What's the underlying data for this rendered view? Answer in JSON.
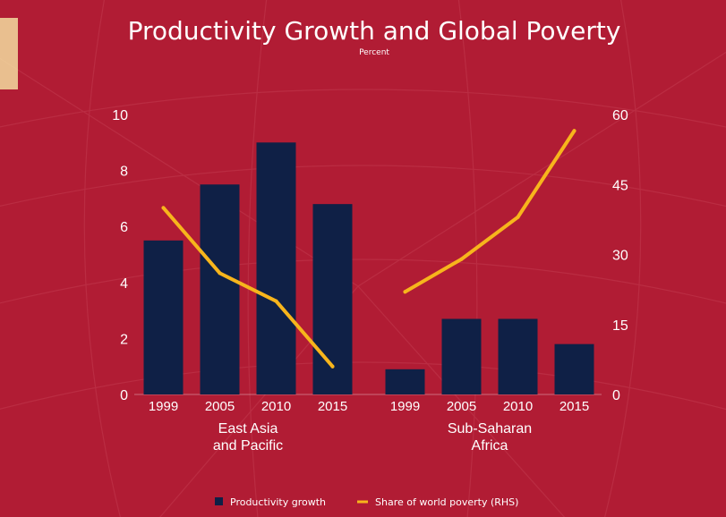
{
  "chart_data": {
    "type": "bar",
    "title": "Productivity Growth and Global Poverty",
    "subtitle": "Percent",
    "groups": [
      {
        "label_lines": [
          "East Asia",
          "and Pacific"
        ],
        "categories": [
          "1999",
          "2005",
          "2010",
          "2015"
        ]
      },
      {
        "label_lines": [
          "Sub-Saharan",
          "Africa"
        ],
        "categories": [
          "1999",
          "2005",
          "2010",
          "2015"
        ]
      }
    ],
    "series": [
      {
        "name": "Productivity growth",
        "axis": "left",
        "kind": "bar",
        "color": "#0f2046",
        "values": [
          [
            5.5,
            7.5,
            9.0,
            6.8
          ],
          [
            0.9,
            2.7,
            2.7,
            1.8
          ]
        ]
      },
      {
        "name": "Share of world poverty (RHS)",
        "axis": "right",
        "kind": "line",
        "color": "#f7b51c",
        "values": [
          [
            40,
            26,
            20,
            6
          ],
          [
            22,
            29,
            38,
            56.5
          ]
        ]
      }
    ],
    "y_left": {
      "min": 0,
      "max": 10,
      "ticks": [
        "0",
        "2",
        "4",
        "6",
        "8",
        "10"
      ]
    },
    "y_right": {
      "min": 0,
      "max": 60,
      "ticks": [
        "0",
        "15",
        "30",
        "45",
        "60"
      ]
    },
    "grid": false,
    "legend_position": "bottom",
    "background_color": "#b11c34"
  }
}
